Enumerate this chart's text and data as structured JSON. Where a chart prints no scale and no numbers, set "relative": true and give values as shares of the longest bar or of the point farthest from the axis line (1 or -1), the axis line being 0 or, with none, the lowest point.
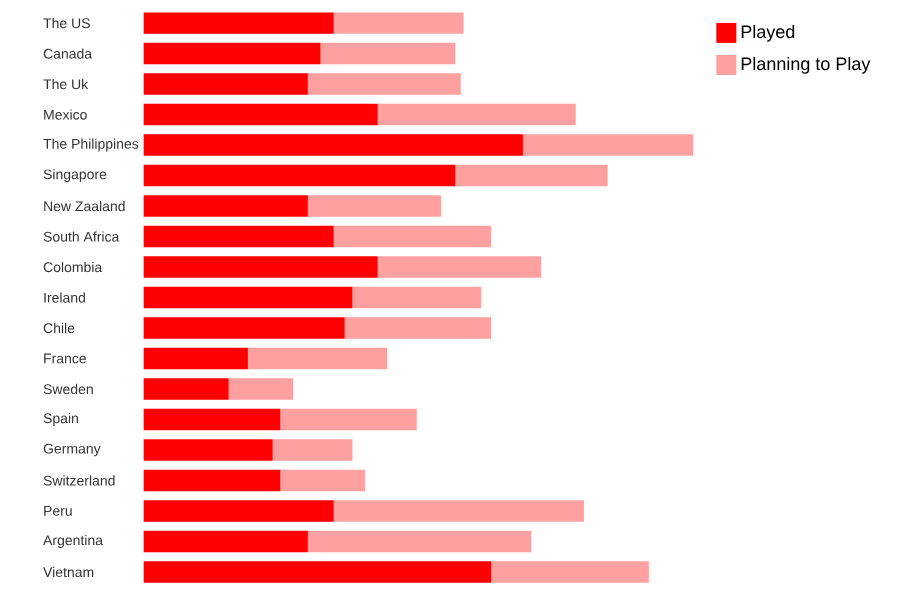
{
  "chart_data": {
    "type": "bar",
    "orientation": "horizontal",
    "stacked": true,
    "relative": true,
    "legend": "top right",
    "categories": [
      "The US",
      "Canada",
      "The Uk",
      "Mexico",
      "The Philippines",
      "Singapore",
      "New Zaaland",
      "South Africa",
      "Colombia",
      "Ireland",
      "Chile",
      "France",
      "Sweden",
      "Spain",
      "Germany",
      "Switzerland",
      "Peru",
      "Argentina",
      "Vietnam"
    ],
    "series": [
      {
        "name": "Played",
        "color": "#ff0000",
        "values": [
          0.346,
          0.322,
          0.299,
          0.426,
          0.69,
          0.567,
          0.299,
          0.346,
          0.426,
          0.38,
          0.366,
          0.19,
          0.155,
          0.249,
          0.235,
          0.249,
          0.346,
          0.299,
          0.632
        ]
      },
      {
        "name": "Planning to Play",
        "color": "#ffa0a0",
        "values": [
          0.236,
          0.245,
          0.278,
          0.36,
          0.31,
          0.277,
          0.242,
          0.286,
          0.297,
          0.234,
          0.266,
          0.253,
          0.117,
          0.248,
          0.145,
          0.154,
          0.455,
          0.406,
          0.287
        ]
      }
    ]
  }
}
